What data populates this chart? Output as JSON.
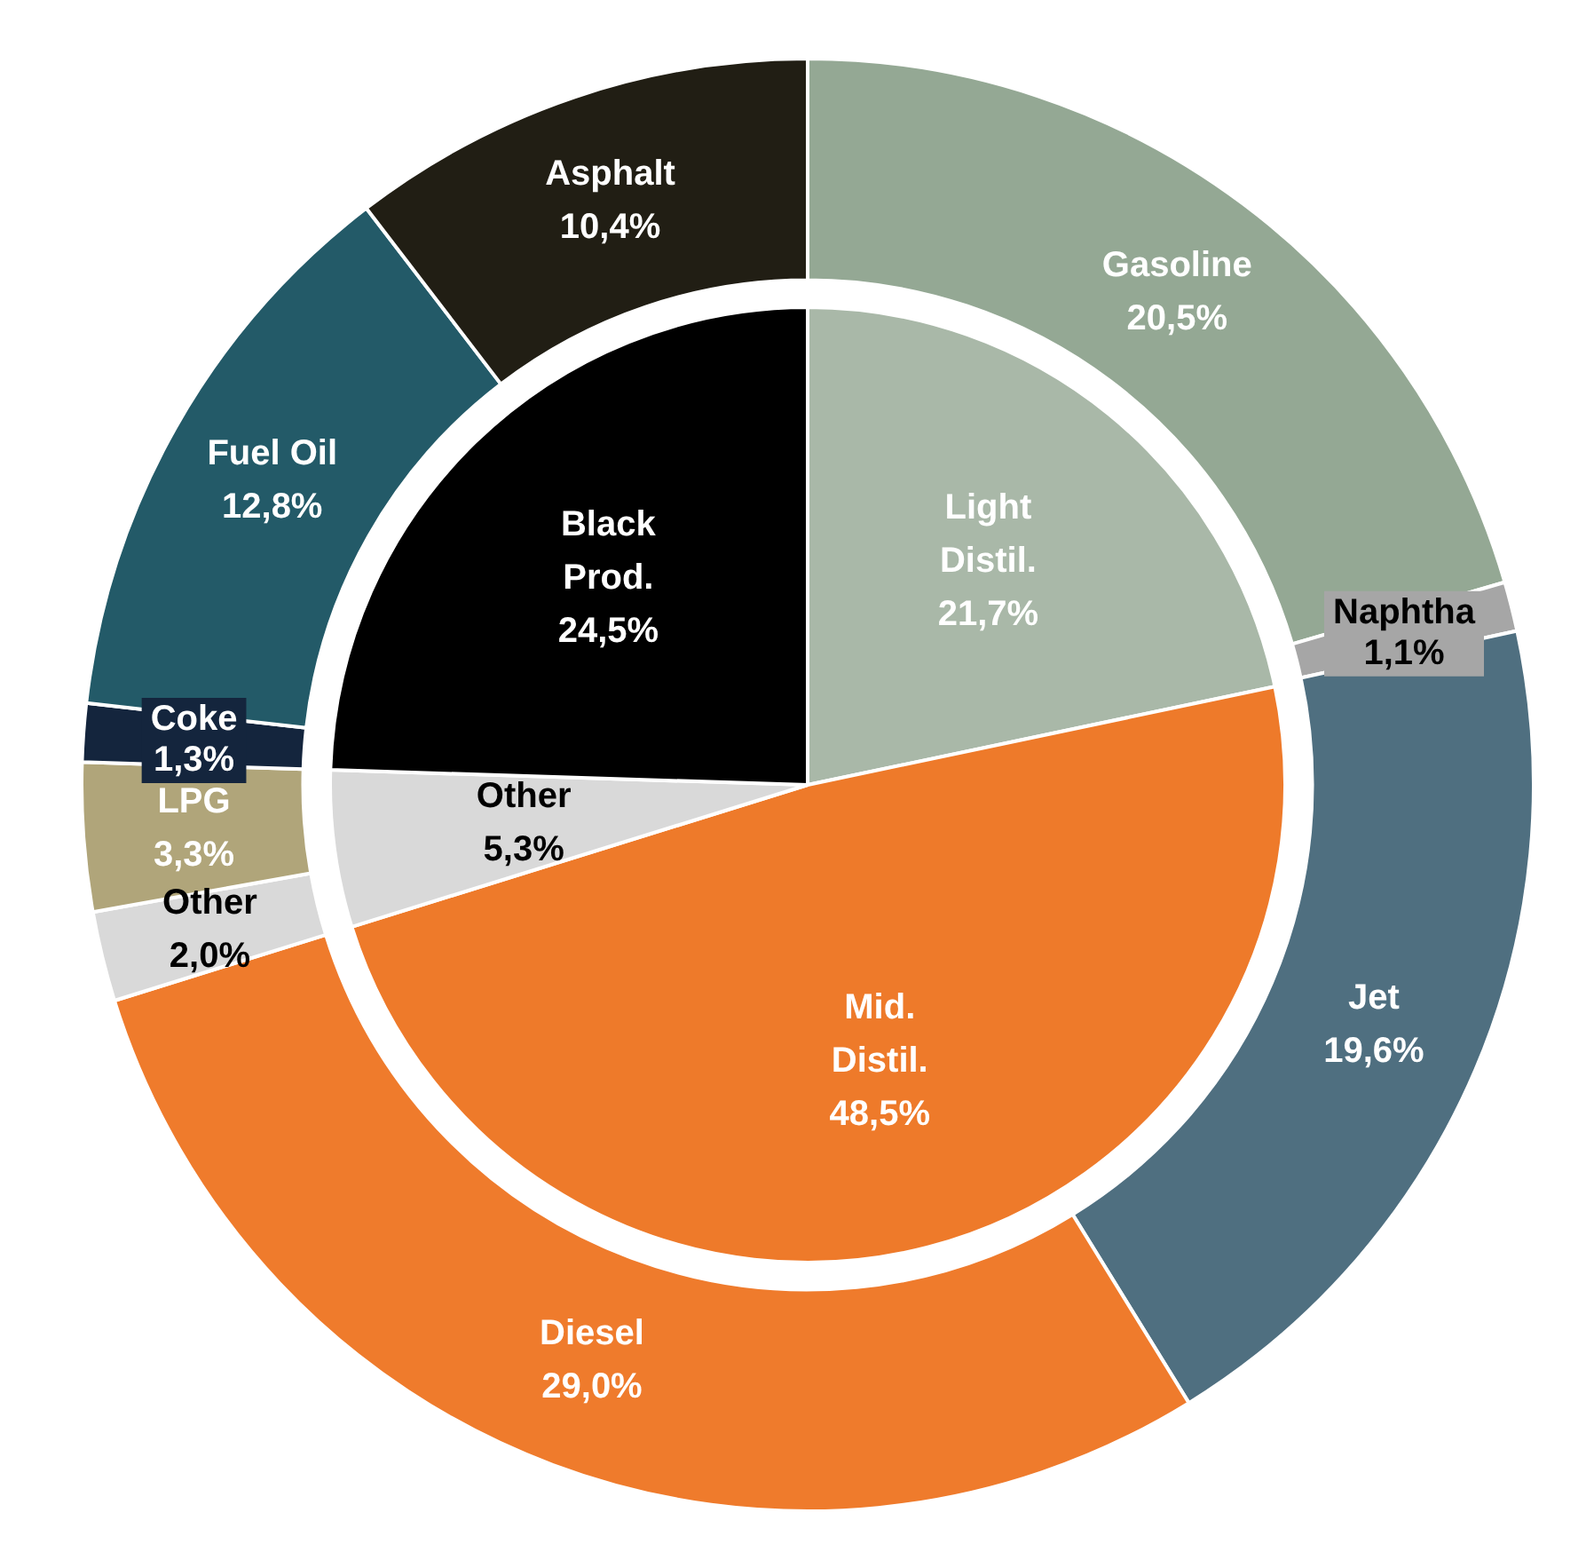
{
  "chart_data": [
    {
      "type": "pie",
      "categories": [
        "Light Distil.",
        "Mid. Distil.",
        "Other",
        "Black Prod."
      ],
      "values": [
        21.7,
        48.5,
        5.3,
        24.5
      ],
      "colors": [
        "#a9b8a8",
        "#ee7a2a",
        "#d9d9d9",
        "#000000"
      ],
      "value_labels": [
        "21,7%",
        "48,5%",
        "5,3%",
        "24,5%"
      ],
      "legend": false
    },
    {
      "type": "donut",
      "categories": [
        "Gasoline",
        "Naphtha",
        "Jet",
        "Diesel",
        "Other",
        "LPG",
        "Coke",
        "Fuel Oil",
        "Asphalt"
      ],
      "values": [
        20.5,
        1.1,
        19.6,
        29.0,
        2.0,
        3.3,
        1.3,
        12.8,
        10.4
      ],
      "colors": [
        "#94a894",
        "#a6a6a6",
        "#4f6f80",
        "#ef7b2c",
        "#d9d9d9",
        "#b0a57a",
        "#14253d",
        "#235a68",
        "#211e14"
      ],
      "value_labels": [
        "20,5%",
        "1,1%",
        "19,6%",
        "29,0%",
        "2,0%",
        "3,3%",
        "1,3%",
        "12,8%",
        "10,4%"
      ],
      "legend": false
    }
  ]
}
